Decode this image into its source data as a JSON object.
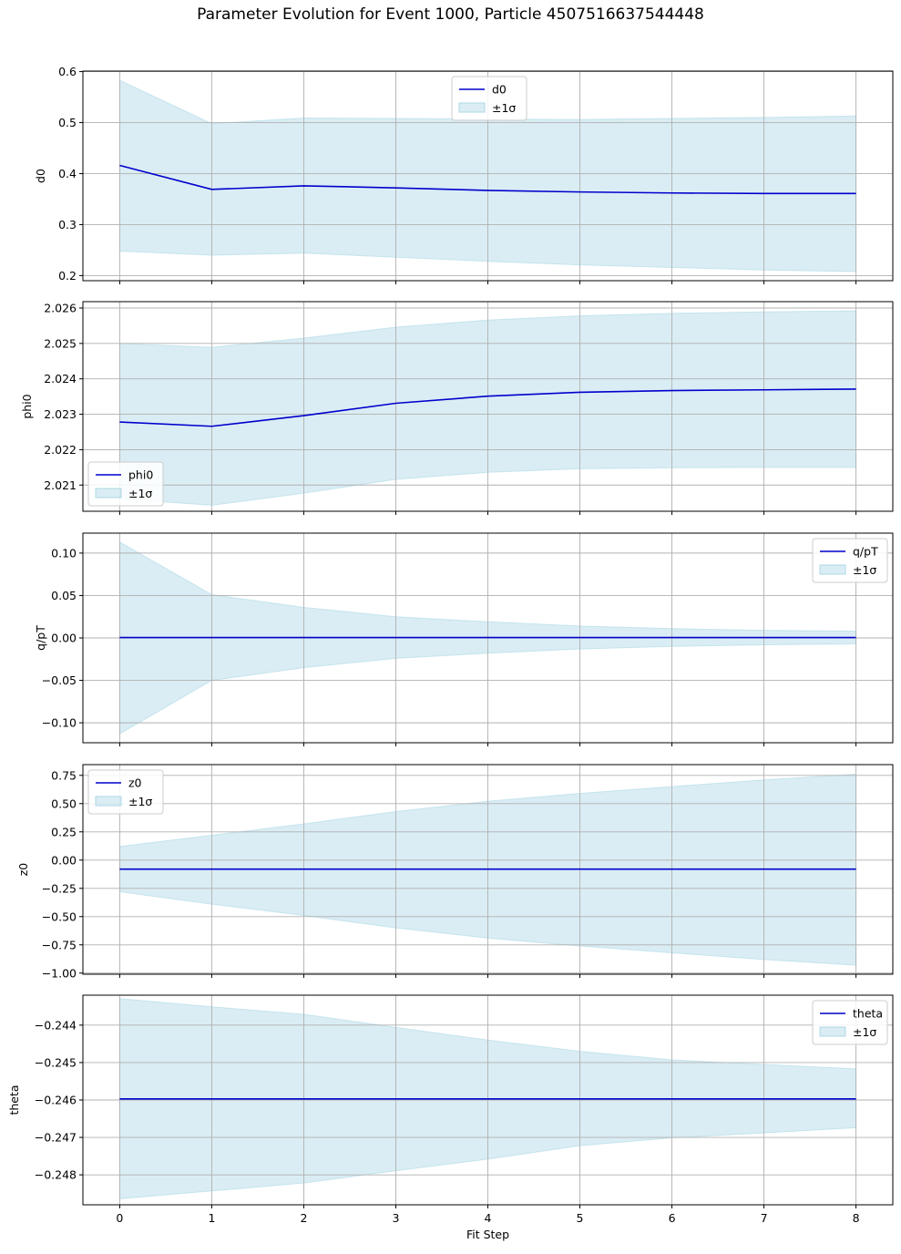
{
  "figure": {
    "title": "Parameter Evolution for Event 1000, Particle 4507516637544448",
    "xlabel": "Fit Step"
  },
  "chart_data": [
    {
      "type": "line",
      "ylabel": "d0",
      "x": [
        0,
        1,
        2,
        3,
        4,
        5,
        6,
        7,
        8
      ],
      "xlim": [
        -0.4,
        8.4
      ],
      "ylim": [
        0.19,
        0.601
      ],
      "yticks": [
        0.2,
        0.3,
        0.4,
        0.5,
        0.6
      ],
      "ytick_labels": [
        "0.2",
        "0.3",
        "0.4",
        "0.5",
        "0.6"
      ],
      "series": [
        {
          "name": "d0",
          "values": [
            0.416,
            0.369,
            0.376,
            0.372,
            0.367,
            0.364,
            0.362,
            0.361,
            0.361
          ]
        }
      ],
      "band": {
        "name": "±1σ",
        "lower": [
          0.248,
          0.24,
          0.244,
          0.236,
          0.228,
          0.221,
          0.216,
          0.211,
          0.208
        ],
        "upper": [
          0.583,
          0.498,
          0.509,
          0.508,
          0.507,
          0.506,
          0.508,
          0.51,
          0.513
        ]
      },
      "legend": "upper center",
      "grid": true
    },
    {
      "type": "line",
      "ylabel": "phi0",
      "x": [
        0,
        1,
        2,
        3,
        4,
        5,
        6,
        7,
        8
      ],
      "xlim": [
        -0.4,
        8.4
      ],
      "ylim": [
        2.02026,
        2.02618
      ],
      "yticks": [
        2.021,
        2.022,
        2.023,
        2.024,
        2.025,
        2.026
      ],
      "ytick_labels": [
        "2.021",
        "2.022",
        "2.023",
        "2.024",
        "2.025",
        "2.026"
      ],
      "series": [
        {
          "name": "phi0",
          "values": [
            2.02278,
            2.02266,
            2.02296,
            2.02331,
            2.02351,
            2.02362,
            2.02367,
            2.02369,
            2.02371
          ]
        }
      ],
      "band": {
        "name": "±1σ",
        "lower": [
          2.02061,
          2.02043,
          2.02077,
          2.02116,
          2.02136,
          2.02146,
          2.02149,
          2.0215,
          2.0215
        ],
        "upper": [
          2.025,
          2.02489,
          2.02515,
          2.02546,
          2.02566,
          2.02578,
          2.02585,
          2.02589,
          2.02592
        ]
      },
      "legend": "lower left",
      "grid": true
    },
    {
      "type": "line",
      "ylabel": "q/pT",
      "x": [
        0,
        1,
        2,
        3,
        4,
        5,
        6,
        7,
        8
      ],
      "xlim": [
        -0.4,
        8.4
      ],
      "ylim": [
        -0.1235,
        0.1235
      ],
      "yticks": [
        -0.1,
        -0.05,
        0.0,
        0.05,
        0.1
      ],
      "ytick_labels": [
        "−0.10",
        "−0.05",
        "0.00",
        "0.05",
        "0.10"
      ],
      "series": [
        {
          "name": "q/pT",
          "values": [
            0.0005,
            0.0005,
            0.0005,
            0.0005,
            0.0005,
            0.0005,
            0.0005,
            0.0005,
            0.0005
          ]
        }
      ],
      "band": {
        "name": "±1σ",
        "lower": [
          -0.113,
          -0.05,
          -0.035,
          -0.024,
          -0.018,
          -0.013,
          -0.01,
          -0.008,
          -0.007
        ],
        "upper": [
          0.113,
          0.051,
          0.036,
          0.025,
          0.019,
          0.014,
          0.011,
          0.009,
          0.008
        ]
      },
      "legend": "upper right",
      "grid": true
    },
    {
      "type": "line",
      "ylabel": "z0",
      "x": [
        0,
        1,
        2,
        3,
        4,
        5,
        6,
        7,
        8
      ],
      "xlim": [
        -0.4,
        8.4
      ],
      "ylim": [
        -1.01,
        0.845
      ],
      "yticks": [
        -1.0,
        -0.75,
        -0.5,
        -0.25,
        0.0,
        0.25,
        0.5,
        0.75
      ],
      "ytick_labels": [
        "−1.00",
        "−0.75",
        "−0.50",
        "−0.25",
        "0.00",
        "0.25",
        "0.50",
        "0.75"
      ],
      "series": [
        {
          "name": "z0",
          "values": [
            -0.08,
            -0.08,
            -0.08,
            -0.08,
            -0.08,
            -0.08,
            -0.08,
            -0.08,
            -0.08
          ]
        }
      ],
      "band": {
        "name": "±1σ",
        "lower": [
          -0.28,
          -0.39,
          -0.49,
          -0.6,
          -0.69,
          -0.76,
          -0.82,
          -0.88,
          -0.93
        ],
        "upper": [
          0.12,
          0.22,
          0.32,
          0.43,
          0.52,
          0.59,
          0.65,
          0.71,
          0.76
        ]
      },
      "legend": "upper left",
      "grid": true
    },
    {
      "type": "line",
      "ylabel": "theta",
      "x": [
        0,
        1,
        2,
        3,
        4,
        5,
        6,
        7,
        8
      ],
      "xlim": [
        -0.4,
        8.4
      ],
      "ylim": [
        -0.2488,
        -0.2432
      ],
      "yticks": [
        -0.248,
        -0.247,
        -0.246,
        -0.245,
        -0.244
      ],
      "ytick_labels": [
        "−0.248",
        "−0.247",
        "−0.246",
        "−0.245",
        "−0.244"
      ],
      "series": [
        {
          "name": "theta",
          "values": [
            -0.24597,
            -0.24597,
            -0.24597,
            -0.24597,
            -0.24597,
            -0.24597,
            -0.24597,
            -0.24597,
            -0.24597
          ]
        }
      ],
      "band": {
        "name": "±1σ",
        "lower": [
          -0.24864,
          -0.24843,
          -0.24822,
          -0.24789,
          -0.24758,
          -0.24722,
          -0.24701,
          -0.24688,
          -0.24674
        ],
        "upper": [
          -0.24329,
          -0.24351,
          -0.24371,
          -0.24406,
          -0.2444,
          -0.2447,
          -0.24493,
          -0.24505,
          -0.24517
        ]
      },
      "legend": "upper right",
      "grid": true
    }
  ],
  "style": {
    "line_color": "#0000cc",
    "band_color": "#add8e6",
    "grid_color": "#b0b0b0",
    "axis_color": "#000000"
  }
}
